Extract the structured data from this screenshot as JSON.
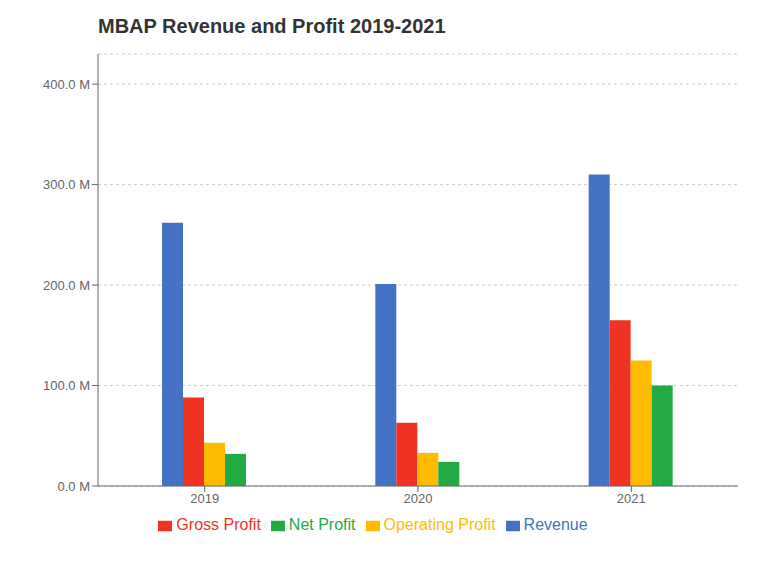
{
  "chart_data": {
    "type": "bar",
    "title": "MBAP Revenue and Profit 2019-2021",
    "categories": [
      "2019",
      "2020",
      "2021"
    ],
    "series": [
      {
        "name": "Revenue",
        "color": "#4472C4",
        "values": [
          262,
          201,
          310
        ]
      },
      {
        "name": "Gross Profit",
        "color": "#EE3322",
        "values": [
          88,
          63,
          165
        ]
      },
      {
        "name": "Operating Profit",
        "color": "#FFBB00",
        "values": [
          43,
          33,
          125
        ]
      },
      {
        "name": "Net Profit",
        "color": "#22AA44",
        "values": [
          32,
          24,
          100
        ]
      }
    ],
    "ylim": [
      0,
      430
    ],
    "yticks": [
      {
        "value": 0,
        "label": "0.0 M"
      },
      {
        "value": 100,
        "label": "100.0 M"
      },
      {
        "value": 200,
        "label": "200.0 M"
      },
      {
        "value": 300,
        "label": "300.0 M"
      },
      {
        "value": 400,
        "label": "400.0 M"
      }
    ],
    "grid": true,
    "legend": "bottom"
  }
}
